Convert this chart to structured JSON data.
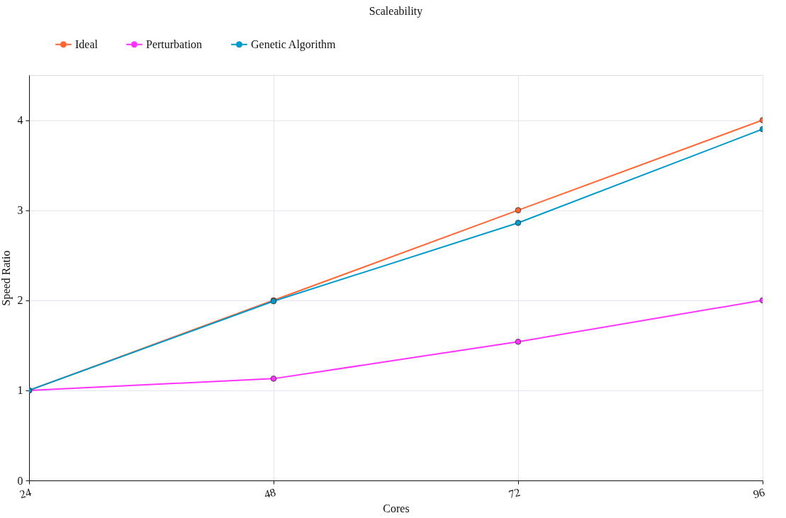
{
  "chart_data": {
    "type": "line",
    "title": "Scaleability",
    "xlabel": "Cores",
    "ylabel": "Speed Ratio",
    "x": [
      24,
      48,
      72,
      96
    ],
    "series": [
      {
        "name": "Ideal",
        "color": "#ff6633",
        "values": [
          1,
          2,
          3,
          4
        ]
      },
      {
        "name": "Perturbation",
        "color": "#ff33ff",
        "values": [
          1,
          1.13,
          1.54,
          2.0
        ]
      },
      {
        "name": "Genetic Algorithm",
        "color": "#0099cc",
        "values": [
          1,
          1.99,
          2.86,
          3.9
        ]
      }
    ],
    "xlim": [
      24,
      96
    ],
    "xticks": [
      24,
      48,
      72,
      96
    ],
    "ylim": [
      0,
      4.5
    ],
    "yticks": [
      0,
      1,
      2,
      3,
      4
    ],
    "grid": true,
    "legend": "top left",
    "marker": "circle",
    "line_style": "solid"
  }
}
